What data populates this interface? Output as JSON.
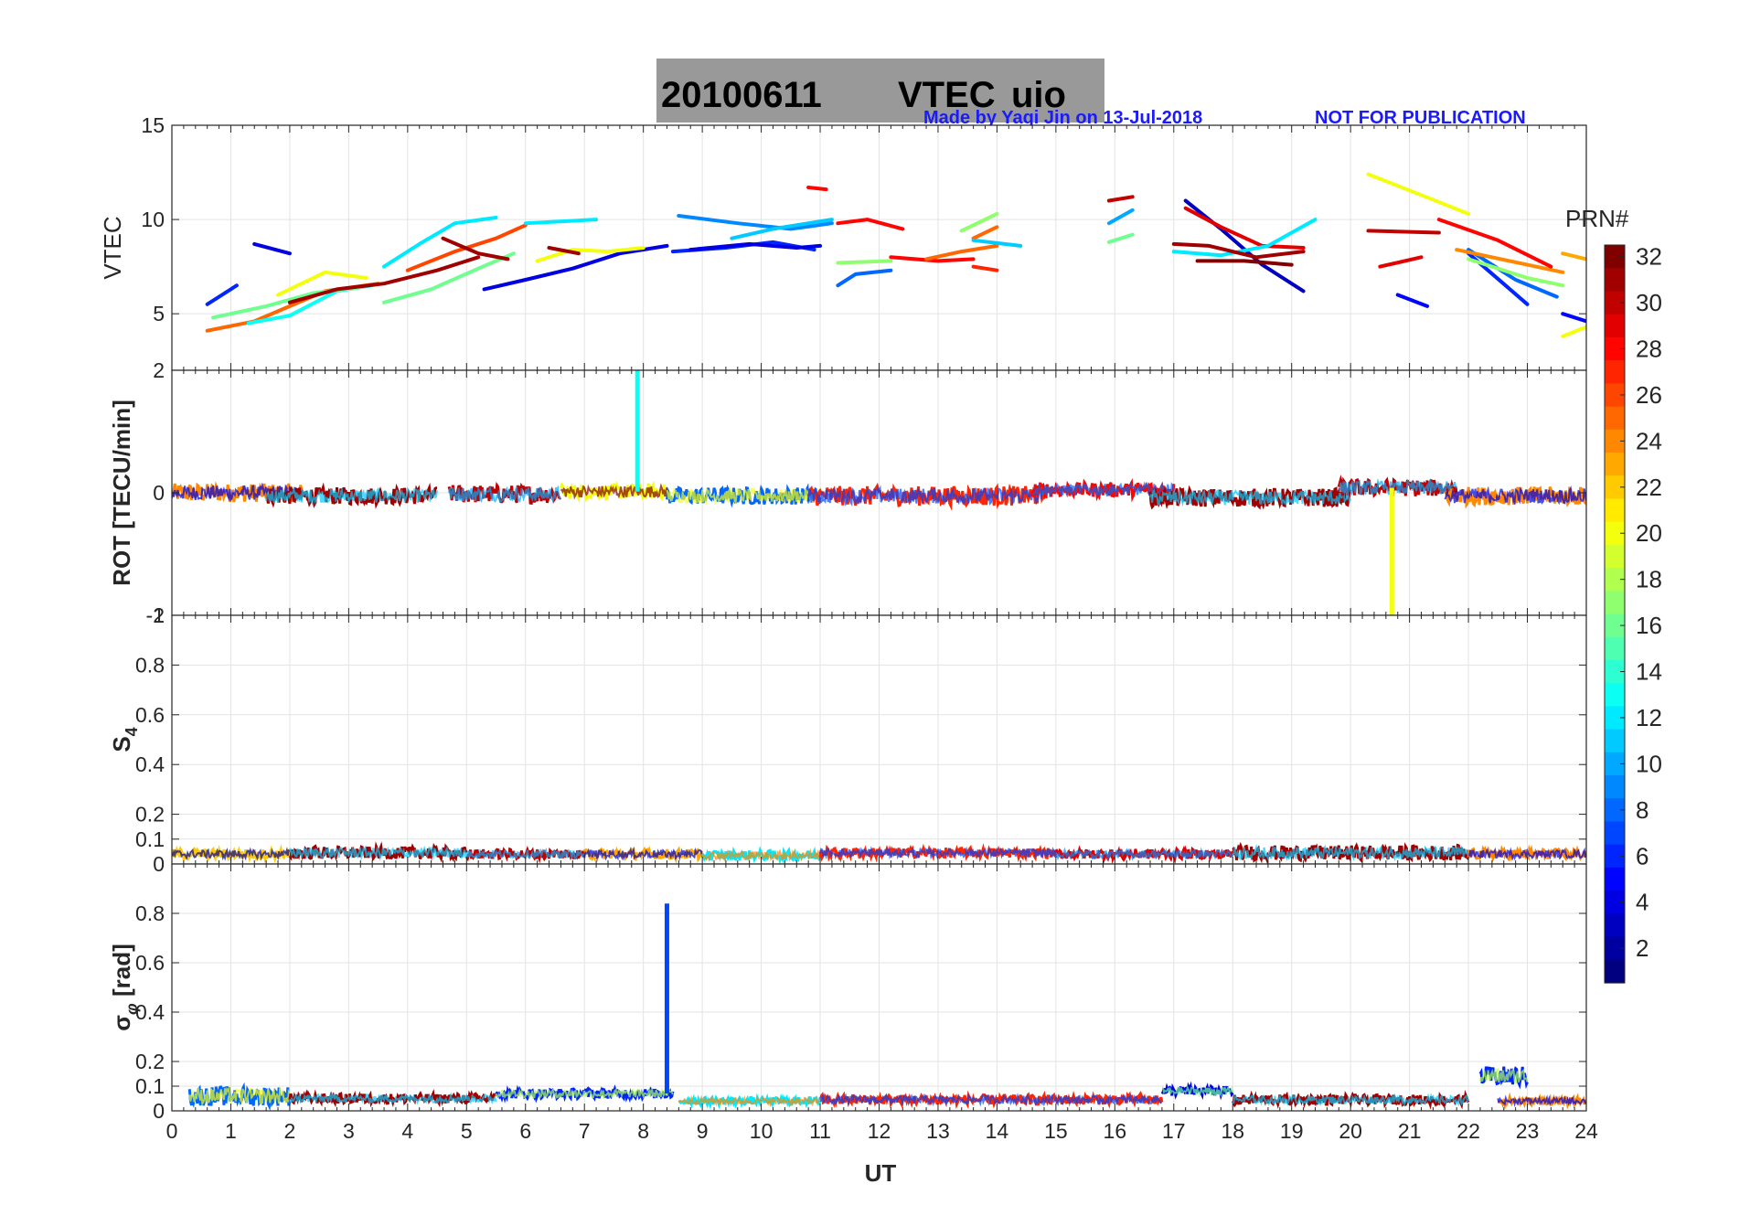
{
  "title": {
    "date": "20100611",
    "quantity": "VTEC",
    "station": "uio",
    "credit": "Made by Yaqi Jin on 13-Jul-2018",
    "notice": "NOT FOR PUBLICATION",
    "box_color": "#999999"
  },
  "colorbar": {
    "label": "PRN#",
    "ticks": [
      2,
      4,
      6,
      8,
      10,
      12,
      14,
      16,
      18,
      20,
      22,
      24,
      26,
      28,
      30,
      32
    ],
    "range": [
      1,
      32
    ],
    "colormap": "jet"
  },
  "chart_data": [
    {
      "type": "line",
      "panel": "vtec",
      "ylabel": "VTEC",
      "xlim": [
        0,
        24
      ],
      "ylim": [
        2,
        15
      ],
      "yticks": [
        "5",
        "10",
        "15"
      ],
      "ytick_values": [
        5,
        10,
        15
      ],
      "grid": true,
      "series": [
        {
          "prn": 6,
          "x": [
            0.6,
            1.1
          ],
          "y": [
            5.5,
            6.5
          ]
        },
        {
          "prn": 25,
          "x": [
            0.6,
            1.4,
            2.6,
            3.5
          ],
          "y": [
            4.1,
            4.6,
            6.2,
            6.6
          ]
        },
        {
          "prn": 13,
          "x": [
            1.3,
            2.0,
            2.8,
            3.4
          ],
          "y": [
            4.5,
            4.9,
            6.2,
            6.5
          ]
        },
        {
          "prn": 16,
          "x": [
            0.7,
            1.6,
            2.4,
            3.2
          ],
          "y": [
            4.8,
            5.4,
            6.1,
            6.4
          ]
        },
        {
          "prn": 20,
          "x": [
            1.8,
            2.6,
            3.3
          ],
          "y": [
            6.0,
            7.2,
            6.9
          ]
        },
        {
          "prn": 4,
          "x": [
            1.4,
            2.0
          ],
          "y": [
            8.7,
            8.2
          ]
        },
        {
          "prn": 31,
          "x": [
            2.0,
            2.8,
            3.6,
            4.5,
            5.2
          ],
          "y": [
            5.6,
            6.3,
            6.6,
            7.3,
            8.0
          ]
        },
        {
          "prn": 12,
          "x": [
            3.6,
            4.2,
            4.8,
            5.5
          ],
          "y": [
            7.5,
            8.7,
            9.8,
            10.1
          ]
        },
        {
          "prn": 16,
          "x": [
            3.6,
            4.4,
            5.2,
            5.8
          ],
          "y": [
            5.6,
            6.3,
            7.4,
            8.2
          ]
        },
        {
          "prn": 26,
          "x": [
            4.0,
            4.8,
            5.5,
            6.0
          ],
          "y": [
            7.3,
            8.3,
            9.0,
            9.7
          ]
        },
        {
          "prn": 31,
          "x": [
            4.6,
            5.2,
            5.7
          ],
          "y": [
            9.0,
            8.2,
            7.9
          ]
        },
        {
          "prn": 4,
          "x": [
            5.3,
            6.0,
            6.8,
            7.6,
            8.4
          ],
          "y": [
            6.3,
            6.8,
            7.4,
            8.2,
            8.6
          ]
        },
        {
          "prn": 20,
          "x": [
            6.2,
            6.8,
            7.4,
            8.0
          ],
          "y": [
            7.8,
            8.4,
            8.3,
            8.5
          ]
        },
        {
          "prn": 31,
          "x": [
            6.4,
            6.9
          ],
          "y": [
            8.5,
            8.2
          ]
        },
        {
          "prn": 12,
          "x": [
            6.0,
            7.2
          ],
          "y": [
            9.8,
            10.0
          ]
        },
        {
          "prn": 6,
          "x": [
            8.5,
            9.4,
            10.2,
            10.9
          ],
          "y": [
            8.3,
            8.5,
            8.8,
            8.4
          ]
        },
        {
          "prn": 9,
          "x": [
            8.6,
            9.6,
            10.5,
            11.2
          ],
          "y": [
            10.2,
            9.8,
            9.5,
            9.8
          ]
        },
        {
          "prn": 4,
          "x": [
            8.8,
            9.8,
            10.6,
            11.0
          ],
          "y": [
            8.4,
            8.7,
            8.5,
            8.6
          ]
        },
        {
          "prn": 11,
          "x": [
            9.5,
            10.2,
            10.8,
            11.2
          ],
          "y": [
            9.0,
            9.5,
            9.8,
            10.0
          ]
        },
        {
          "prn": 28,
          "x": [
            10.8,
            11.1
          ],
          "y": [
            11.7,
            11.6
          ]
        },
        {
          "prn": 28,
          "x": [
            11.3,
            11.8,
            12.4
          ],
          "y": [
            9.8,
            10.0,
            9.5
          ]
        },
        {
          "prn": 17,
          "x": [
            11.3,
            12.2
          ],
          "y": [
            7.7,
            7.8
          ]
        },
        {
          "prn": 8,
          "x": [
            11.3,
            11.6,
            12.2
          ],
          "y": [
            6.5,
            7.1,
            7.3
          ]
        },
        {
          "prn": 28,
          "x": [
            12.2,
            13.0,
            13.6
          ],
          "y": [
            8.0,
            7.8,
            7.9
          ]
        },
        {
          "prn": 25,
          "x": [
            12.8,
            13.4,
            14.0
          ],
          "y": [
            7.9,
            8.3,
            8.6
          ]
        },
        {
          "prn": 25,
          "x": [
            13.6,
            14.0
          ],
          "y": [
            9.0,
            9.6
          ]
        },
        {
          "prn": 17,
          "x": [
            13.4,
            14.0
          ],
          "y": [
            9.4,
            10.3
          ]
        },
        {
          "prn": 11,
          "x": [
            13.6,
            14.4
          ],
          "y": [
            8.9,
            8.6
          ]
        },
        {
          "prn": 27,
          "x": [
            13.6,
            14.0
          ],
          "y": [
            7.5,
            7.3
          ]
        },
        {
          "prn": 30,
          "x": [
            15.9,
            16.3
          ],
          "y": [
            11.0,
            11.2
          ]
        },
        {
          "prn": 10,
          "x": [
            15.9,
            16.3
          ],
          "y": [
            9.8,
            10.5
          ]
        },
        {
          "prn": 16,
          "x": [
            15.9,
            16.3
          ],
          "y": [
            8.8,
            9.2
          ]
        },
        {
          "prn": 3,
          "x": [
            17.2,
            17.8,
            18.5,
            19.2
          ],
          "y": [
            11.0,
            9.5,
            7.6,
            6.2
          ]
        },
        {
          "prn": 29,
          "x": [
            17.2,
            17.8,
            18.5,
            19.2
          ],
          "y": [
            10.6,
            9.6,
            8.6,
            8.5
          ]
        },
        {
          "prn": 12,
          "x": [
            17.0,
            17.8,
            18.6,
            19.4
          ],
          "y": [
            8.3,
            8.1,
            8.6,
            10.0
          ]
        },
        {
          "prn": 31,
          "x": [
            17.0,
            17.6,
            18.4,
            19.2
          ],
          "y": [
            8.7,
            8.6,
            8.0,
            8.3
          ]
        },
        {
          "prn": 32,
          "x": [
            17.4,
            18.2,
            19.0
          ],
          "y": [
            7.8,
            7.8,
            7.6
          ]
        },
        {
          "prn": 20,
          "x": [
            20.3,
            21.2,
            22.0
          ],
          "y": [
            12.4,
            11.3,
            10.3
          ]
        },
        {
          "prn": 30,
          "x": [
            20.3,
            21.5
          ],
          "y": [
            9.4,
            9.3
          ]
        },
        {
          "prn": 29,
          "x": [
            20.5,
            21.2
          ],
          "y": [
            7.5,
            8.0
          ]
        },
        {
          "prn": 5,
          "x": [
            20.8,
            21.3
          ],
          "y": [
            6.0,
            5.4
          ]
        },
        {
          "prn": 6,
          "x": [
            22.0,
            23.0
          ],
          "y": [
            8.2,
            5.5
          ]
        },
        {
          "prn": 8,
          "x": [
            22.0,
            22.8,
            23.5
          ],
          "y": [
            8.4,
            6.8,
            5.9
          ]
        },
        {
          "prn": 17,
          "x": [
            22.0,
            23.0,
            23.6
          ],
          "y": [
            7.9,
            6.9,
            6.5
          ]
        },
        {
          "prn": 24,
          "x": [
            21.8,
            23.0,
            23.6
          ],
          "y": [
            8.4,
            7.6,
            7.2
          ]
        },
        {
          "prn": 28,
          "x": [
            21.5,
            22.5,
            23.4
          ],
          "y": [
            10.0,
            8.9,
            7.5
          ]
        },
        {
          "prn": 23,
          "x": [
            23.6,
            24.0
          ],
          "y": [
            8.2,
            7.9
          ]
        },
        {
          "prn": 5,
          "x": [
            23.6,
            24.0
          ],
          "y": [
            5.0,
            4.6
          ]
        },
        {
          "prn": 20,
          "x": [
            23.6,
            24.0
          ],
          "y": [
            3.8,
            4.3
          ]
        }
      ]
    },
    {
      "type": "line",
      "panel": "rot",
      "ylabel": "ROT [TECU/min]",
      "xlim": [
        0,
        24
      ],
      "ylim": [
        -2,
        2
      ],
      "yticks": [
        "-2",
        "0",
        "2"
      ],
      "ytick_values": [
        -2,
        0,
        2
      ],
      "grid": true,
      "band": [
        {
          "prn": 24,
          "x0": 0.0,
          "x1": 2.2,
          "y": 0.0,
          "amp": 0.15
        },
        {
          "prn": 31,
          "x0": 1.6,
          "x1": 4.5,
          "y": -0.05,
          "amp": 0.14
        },
        {
          "prn": 30,
          "x0": 4.7,
          "x1": 6.6,
          "y": -0.02,
          "amp": 0.15
        },
        {
          "prn": 20,
          "x0": 6.6,
          "x1": 8.4,
          "y": 0.02,
          "amp": 0.12
        },
        {
          "prn": 8,
          "x0": 8.4,
          "x1": 11.0,
          "y": -0.05,
          "amp": 0.14
        },
        {
          "prn": 27,
          "x0": 10.8,
          "x1": 14.8,
          "y": -0.05,
          "amp": 0.16
        },
        {
          "prn": 28,
          "x0": 14.6,
          "x1": 17.0,
          "y": 0.05,
          "amp": 0.12
        },
        {
          "prn": 31,
          "x0": 16.6,
          "x1": 20.0,
          "y": -0.08,
          "amp": 0.15
        },
        {
          "prn": 30,
          "x0": 19.8,
          "x1": 21.8,
          "y": 0.08,
          "amp": 0.14
        },
        {
          "prn": 24,
          "x0": 21.6,
          "x1": 24.0,
          "y": -0.05,
          "amp": 0.15
        }
      ],
      "spikes": [
        {
          "prn": 13,
          "x": 7.9,
          "y": 2.0
        },
        {
          "prn": 20,
          "x": 20.7,
          "y": -2.0
        }
      ]
    },
    {
      "type": "line",
      "panel": "s4",
      "ylabel": "S4",
      "xlim": [
        0,
        24
      ],
      "ylim": [
        0,
        1
      ],
      "yticks": [
        "0",
        "0.1",
        "0.2",
        "0.4",
        "0.6",
        "0.8",
        "1"
      ],
      "ytick_values": [
        0,
        0.1,
        0.2,
        0.4,
        0.6,
        0.8,
        1
      ],
      "grid": true,
      "band": [
        {
          "prn": 22,
          "x0": 0.0,
          "x1": 2.0,
          "y": 0.04,
          "amp": 0.02
        },
        {
          "prn": 31,
          "x0": 2.0,
          "x1": 5.0,
          "y": 0.045,
          "amp": 0.025
        },
        {
          "prn": 30,
          "x0": 5.0,
          "x1": 7.0,
          "y": 0.04,
          "amp": 0.02
        },
        {
          "prn": 23,
          "x0": 7.0,
          "x1": 9.0,
          "y": 0.04,
          "amp": 0.02
        },
        {
          "prn": 12,
          "x0": 9.0,
          "x1": 11.0,
          "y": 0.035,
          "amp": 0.02
        },
        {
          "prn": 27,
          "x0": 11.0,
          "x1": 15.0,
          "y": 0.045,
          "amp": 0.02
        },
        {
          "prn": 29,
          "x0": 15.0,
          "x1": 18.0,
          "y": 0.04,
          "amp": 0.02
        },
        {
          "prn": 31,
          "x0": 18.0,
          "x1": 22.0,
          "y": 0.045,
          "amp": 0.03
        },
        {
          "prn": 24,
          "x0": 22.0,
          "x1": 24.0,
          "y": 0.04,
          "amp": 0.02
        }
      ],
      "spikes": []
    },
    {
      "type": "line",
      "panel": "sigphi",
      "ylabel": "σφ [rad]",
      "xlim": [
        0,
        24
      ],
      "ylim": [
        0,
        1
      ],
      "yticks": [
        "0",
        "0.1",
        "0.2",
        "0.4",
        "0.6",
        "0.8"
      ],
      "ytick_values": [
        0,
        0.1,
        0.2,
        0.4,
        0.6,
        0.8
      ],
      "grid": true,
      "band": [
        {
          "prn": 8,
          "x0": 0.3,
          "x1": 2.0,
          "y": 0.06,
          "amp": 0.04
        },
        {
          "prn": 31,
          "x0": 2.0,
          "x1": 5.5,
          "y": 0.05,
          "amp": 0.02
        },
        {
          "prn": 6,
          "x0": 5.5,
          "x1": 8.5,
          "y": 0.07,
          "amp": 0.02
        },
        {
          "prn": 12,
          "x0": 8.6,
          "x1": 11.0,
          "y": 0.04,
          "amp": 0.015
        },
        {
          "prn": 27,
          "x0": 11.0,
          "x1": 16.8,
          "y": 0.045,
          "amp": 0.02
        },
        {
          "prn": 4,
          "x0": 16.8,
          "x1": 18.0,
          "y": 0.08,
          "amp": 0.02
        },
        {
          "prn": 31,
          "x0": 18.0,
          "x1": 22.0,
          "y": 0.045,
          "amp": 0.02
        },
        {
          "prn": 6,
          "x0": 22.2,
          "x1": 23.0,
          "y": 0.14,
          "amp": 0.04
        },
        {
          "prn": 24,
          "x0": 22.5,
          "x1": 24.0,
          "y": 0.04,
          "amp": 0.015
        }
      ],
      "spikes": [
        {
          "prn": 7,
          "x": 8.4,
          "y": 0.84
        }
      ]
    }
  ],
  "xaxis": {
    "label": "UT",
    "ticks": [
      "0",
      "1",
      "2",
      "3",
      "4",
      "5",
      "6",
      "7",
      "8",
      "9",
      "10",
      "11",
      "12",
      "13",
      "14",
      "15",
      "16",
      "17",
      "18",
      "19",
      "20",
      "21",
      "22",
      "23",
      "24"
    ]
  }
}
